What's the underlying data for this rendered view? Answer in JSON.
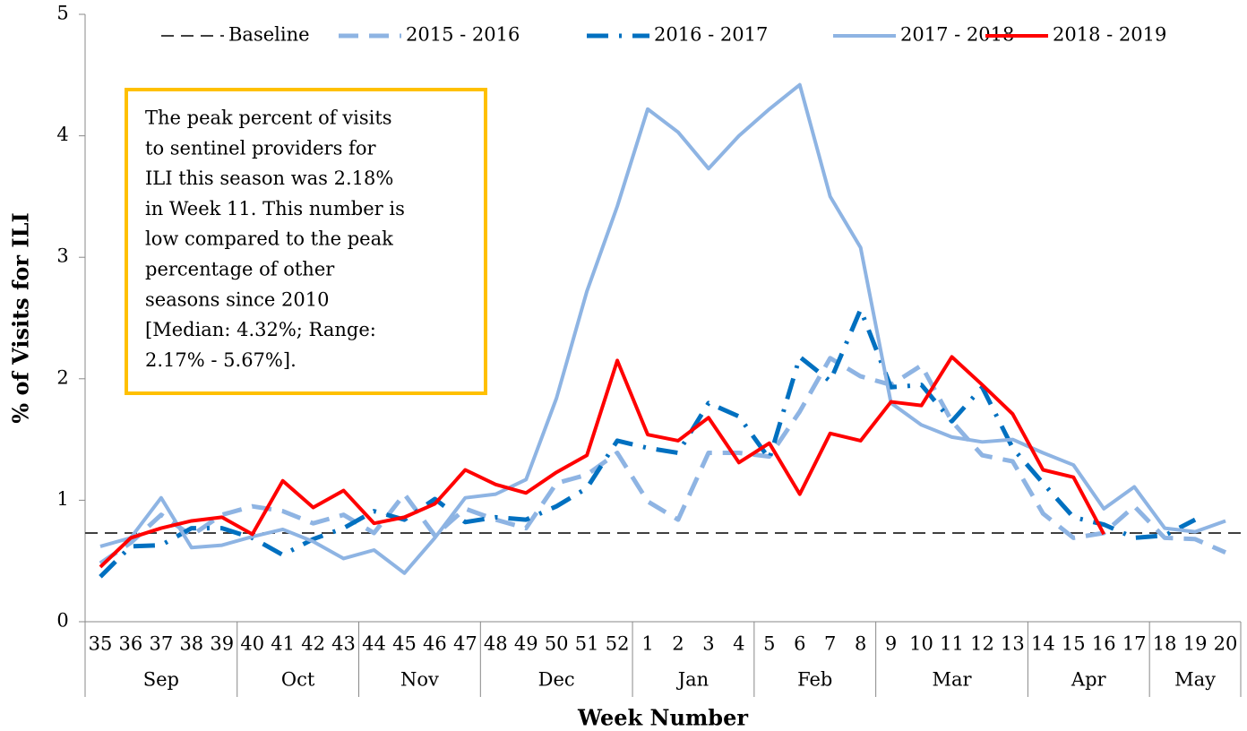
{
  "chart_data": {
    "type": "line",
    "y_label": "% of Visits for ILI",
    "x_label": "Week Number",
    "ylim": [
      0,
      5
    ],
    "yticks": [
      0,
      1,
      2,
      3,
      4,
      5
    ],
    "category_groups": [
      {
        "label": "Sep",
        "categories": [
          "35",
          "36",
          "37",
          "38",
          "39"
        ]
      },
      {
        "label": "Oct",
        "categories": [
          "40",
          "41",
          "42",
          "43"
        ]
      },
      {
        "label": "Nov",
        "categories": [
          "44",
          "45",
          "46",
          "47"
        ]
      },
      {
        "label": "Dec",
        "categories": [
          "48",
          "49",
          "50",
          "51",
          "52"
        ]
      },
      {
        "label": "Jan",
        "categories": [
          "1",
          "2",
          "3",
          "4"
        ]
      },
      {
        "label": "Feb",
        "categories": [
          "5",
          "6",
          "7",
          "8"
        ]
      },
      {
        "label": "Mar",
        "categories": [
          "9",
          "10",
          "11",
          "12",
          "13"
        ]
      },
      {
        "label": "Apr",
        "categories": [
          "14",
          "15",
          "16",
          "17"
        ]
      },
      {
        "label": "May",
        "categories": [
          "18",
          "19",
          "20"
        ]
      }
    ],
    "baseline": {
      "name": "Baseline",
      "value": 0.73,
      "color": "#404040"
    },
    "series": [
      {
        "name": "2015 - 2016",
        "color": "#8eb4e3",
        "style": "dashed",
        "values": [
          0.48,
          0.65,
          0.88,
          0.71,
          0.88,
          0.95,
          0.91,
          0.81,
          0.88,
          0.73,
          1.05,
          0.71,
          0.93,
          0.84,
          0.77,
          1.14,
          1.21,
          1.39,
          0.99,
          0.84,
          1.39,
          1.39,
          1.36,
          1.73,
          2.17,
          2.02,
          1.95,
          2.11,
          1.65,
          1.37,
          1.32,
          0.89,
          0.69,
          0.73,
          0.95,
          0.69,
          0.68,
          0.57
        ]
      },
      {
        "name": "2016 - 2017",
        "color": "#0070c0",
        "style": "dash-dot",
        "values": [
          0.37,
          0.62,
          0.63,
          0.77,
          0.77,
          0.69,
          0.55,
          0.68,
          0.77,
          0.91,
          0.84,
          1.01,
          0.82,
          0.86,
          0.84,
          0.95,
          1.1,
          1.49,
          1.43,
          1.39,
          1.8,
          1.69,
          1.34,
          2.18,
          1.98,
          2.57,
          1.93,
          1.95,
          1.65,
          1.93,
          1.43,
          1.14,
          0.86,
          0.8,
          0.69,
          0.71,
          0.84,
          null
        ]
      },
      {
        "name": "2017 - 2018",
        "color": "#8eb4e3",
        "style": "solid",
        "values": [
          0.62,
          0.69,
          1.02,
          0.61,
          0.63,
          0.7,
          0.76,
          0.66,
          0.52,
          0.59,
          0.4,
          0.69,
          1.02,
          1.05,
          1.17,
          1.84,
          2.72,
          3.42,
          4.22,
          4.03,
          3.73,
          4.0,
          4.22,
          4.42,
          3.5,
          3.08,
          1.8,
          1.62,
          1.52,
          1.48,
          1.5,
          1.39,
          1.29,
          0.93,
          1.11,
          0.77,
          0.74,
          0.83
        ]
      },
      {
        "name": "2018 - 2019",
        "color": "#ff0000",
        "style": "solid",
        "values": [
          0.45,
          0.69,
          0.77,
          0.83,
          0.86,
          0.72,
          1.16,
          0.94,
          1.08,
          0.81,
          0.86,
          0.97,
          1.25,
          1.13,
          1.06,
          1.23,
          1.37,
          2.15,
          1.54,
          1.49,
          1.68,
          1.31,
          1.47,
          1.05,
          1.55,
          1.49,
          1.81,
          1.78,
          2.18,
          1.95,
          1.71,
          1.25,
          1.19,
          0.72,
          null,
          null,
          null,
          null
        ]
      }
    ],
    "annotation": [
      "The peak percent of visits",
      "to sentinel providers for",
      "ILI this season was 2.18%",
      "in Week 11. This number is",
      "low compared to the peak",
      "percentage of other",
      "seasons since 2010",
      "[Median: 4.32%; Range:",
      "2.17% - 5.67%]."
    ],
    "annotation_border": "#ffc000"
  }
}
